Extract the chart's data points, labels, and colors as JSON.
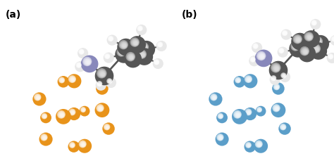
{
  "background_color": "#ffffff",
  "label_a": "(a)",
  "label_b": "(b)",
  "label_fontsize": 10,
  "label_fontweight": "bold",
  "cluster_a_color": "#E8931A",
  "cluster_b_color": "#5B9EC9",
  "bond_a_color": "#C87818",
  "bond_b_color": "#4080AA",
  "carbon_color": "#555555",
  "carbon_color2": "#888888",
  "hydrogen_color": "#E8E8E8",
  "nitrogen_color": "#8888BB",
  "bond_mol_color": "#555555"
}
